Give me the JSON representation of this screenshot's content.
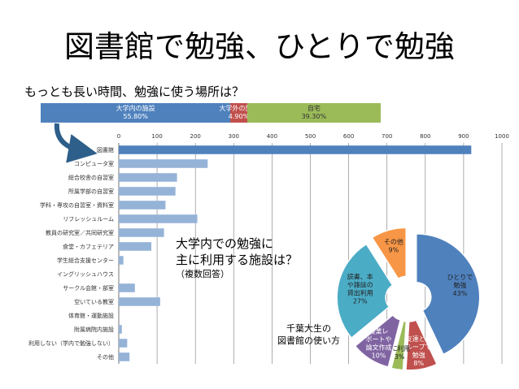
{
  "slide": {
    "title": "図書館で勉強、ひとりで勉強",
    "question": "もっとも長い時間、勉強に使う場所は？",
    "annotation_line1": "大学内での勉強に",
    "annotation_line2": "主に利用する施設は？",
    "annotation_line3": "（複数回答）",
    "caption_line1": "千葉大生の",
    "caption_line2": "図書館の使い方"
  },
  "colors": {
    "blue": "#4f81bd",
    "red": "#c0504d",
    "green": "#9bbb59",
    "purple": "#8064a2",
    "teal": "#4bacc6",
    "orange": "#f79646",
    "lightblue": "#95b3d7",
    "arrow": "#2e5f8a"
  },
  "chart_data": [
    {
      "type": "bar",
      "orientation": "horizontal-stacked",
      "series": [
        {
          "name": "大学内の施設",
          "label": "55.80%",
          "value": 55.8
        },
        {
          "name": "大学外の施設",
          "label": "4.90%",
          "value": 4.9
        },
        {
          "name": "自宅",
          "label": "39.30%",
          "value": 39.3
        }
      ]
    },
    {
      "type": "bar",
      "orientation": "horizontal",
      "categories": [
        "図書館",
        "コンピュータ室",
        "総合校舎の自習室",
        "所属学部の自習室",
        "学科・専攻の自習室・資料室",
        "リフレッシュルーム",
        "教員の研究室／共同研究室",
        "食堂・カフェテリア",
        "学生総合支援センター",
        "イングリッシュハウス",
        "サークル会館・部室",
        "空いている教室",
        "体育館・運動施設",
        "附属病院内施設",
        "利用しない（学内で勉強しない）",
        "その他"
      ],
      "values": [
        920,
        232,
        152,
        148,
        122,
        205,
        118,
        85,
        12,
        0,
        42,
        108,
        0,
        8,
        22,
        28
      ],
      "xlim": [
        0,
        1000
      ],
      "xticks": [
        "0",
        "100",
        "200",
        "300",
        "400",
        "500",
        "600",
        "700",
        "800",
        "900",
        "1000"
      ],
      "grid": true
    },
    {
      "type": "pie",
      "style": "exploded-donut",
      "slices": [
        {
          "name": "ひとりで勉強",
          "label": "43%",
          "value": 43
        },
        {
          "name": "友達とグループで勉強",
          "label": "8%",
          "value": 8
        },
        {
          "name": "PC利用",
          "label": "3%",
          "value": 3
        },
        {
          "name": "授業レポートや論文作成",
          "label": "10%",
          "value": 10
        },
        {
          "name": "読書、本や雑誌の貸出利用",
          "label": "27%",
          "value": 27
        },
        {
          "name": "その他",
          "label": "9%",
          "value": 9
        }
      ],
      "slice_lines": [
        [
          "ひとりで",
          "勉強",
          "43%"
        ],
        [
          "友達とグ",
          "ループで",
          "勉強",
          "8%"
        ],
        [
          "PC利用",
          "3%"
        ],
        [
          "授業レ",
          "ポートや",
          "論文作成",
          "10%"
        ],
        [
          "読書、本",
          "や雑誌の",
          "貸出利用",
          "27%"
        ],
        [
          "その他",
          "9%"
        ]
      ]
    }
  ]
}
